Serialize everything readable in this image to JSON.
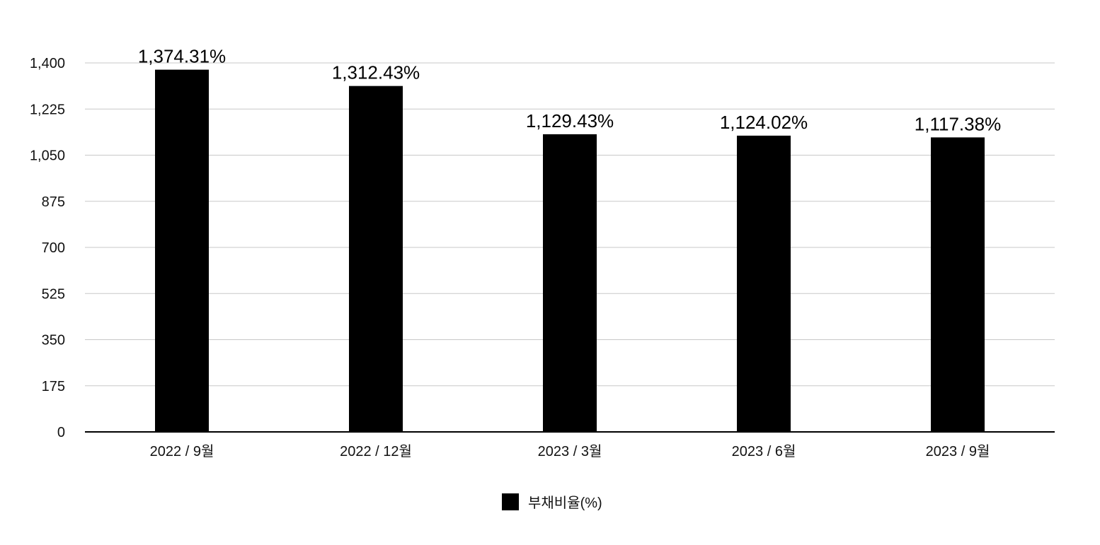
{
  "chart_data": {
    "type": "bar",
    "categories": [
      "2022 / 9월",
      "2022 / 12월",
      "2023 / 3월",
      "2023 / 6월",
      "2023 / 9월"
    ],
    "series": [
      {
        "name": "부채비율(%)",
        "values": [
          1374.31,
          1312.43,
          1129.43,
          1124.02,
          1117.38
        ],
        "data_labels": [
          "1,374.31%",
          "1,312.43%",
          "1,129.43%",
          "1,124.02%",
          "1,117.38%"
        ],
        "color": "#000000"
      }
    ],
    "ylim": [
      0,
      1400
    ],
    "yticks": [
      0,
      175,
      350,
      525,
      700,
      875,
      1050,
      1225,
      1400
    ],
    "ytick_labels": [
      "0",
      "175",
      "350",
      "525",
      "700",
      "875",
      "1,050",
      "1,225",
      "1,400"
    ],
    "grid": true,
    "legend": {
      "position": "bottom-center"
    },
    "colors": {
      "bar": "#000000",
      "grid": "#c8c8c8",
      "axis": "#000000"
    }
  }
}
